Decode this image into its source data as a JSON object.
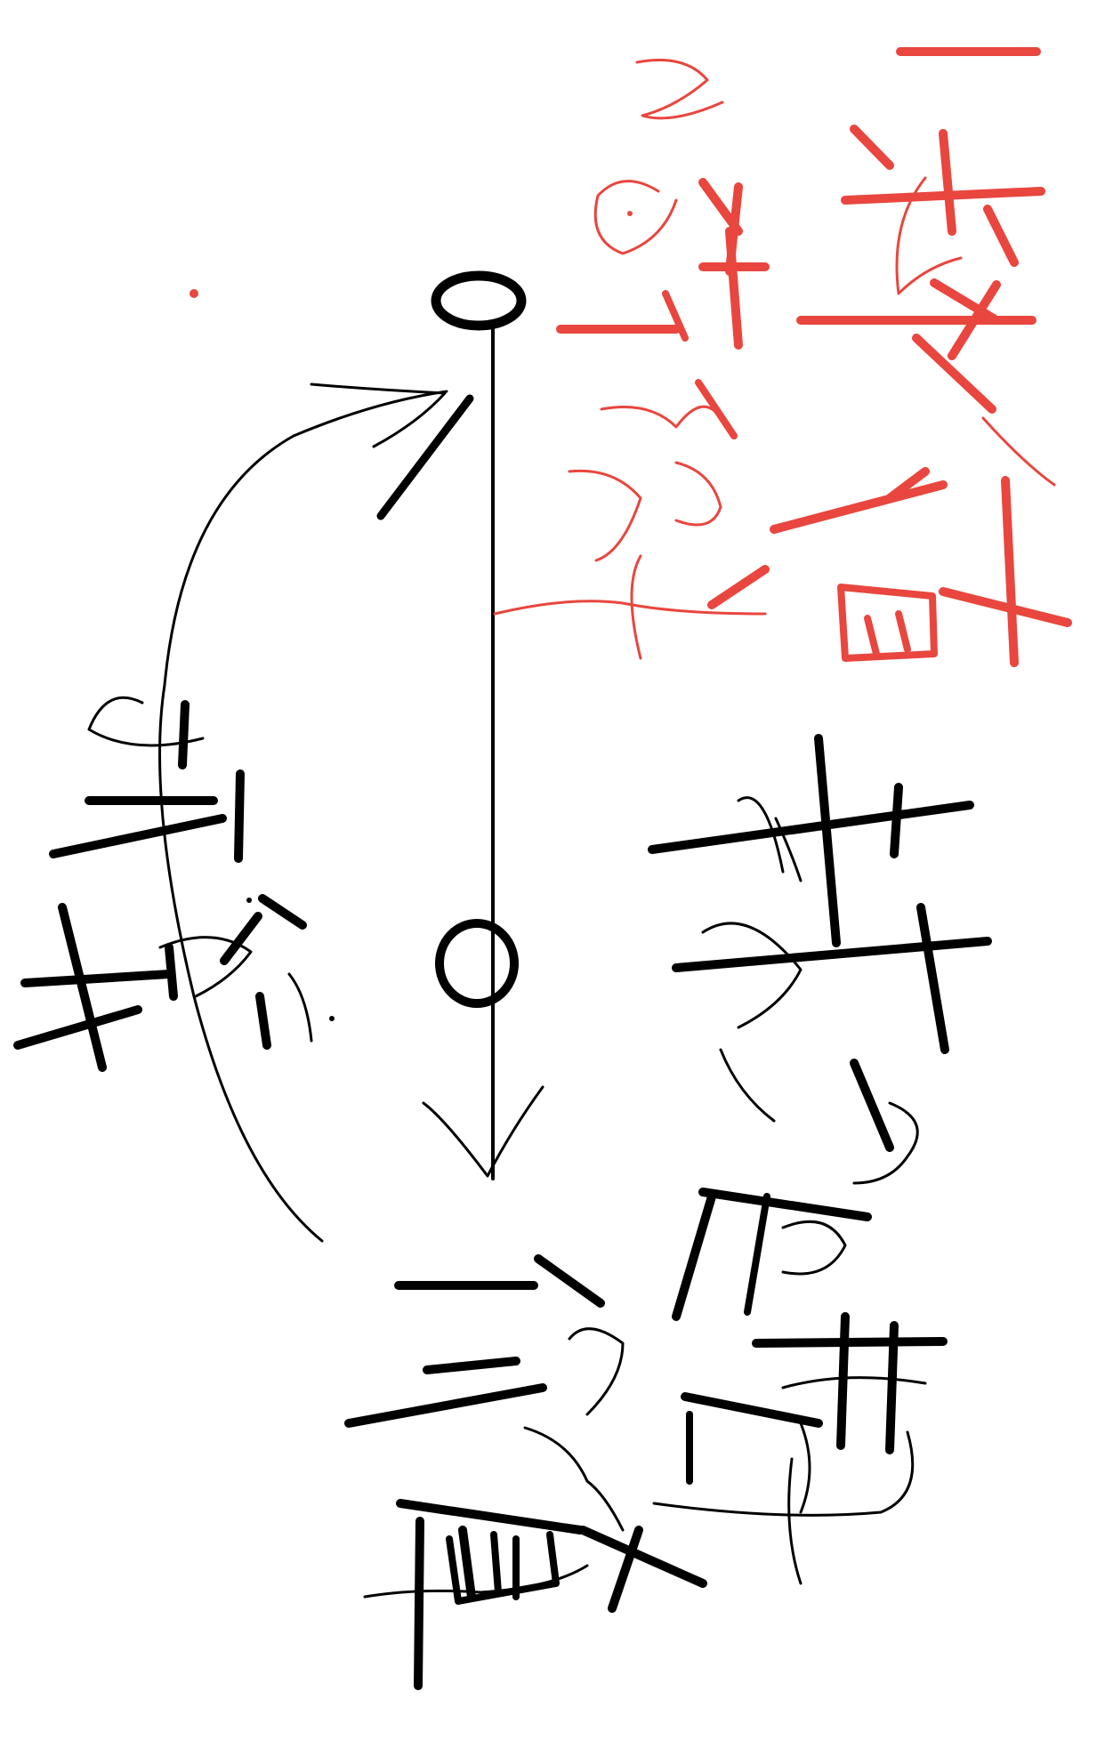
{
  "colors": {
    "ink_black": "#000000",
    "ink_red": "#e8463e",
    "background": "#ffffff"
  },
  "annotations": {
    "red_right_column": "",
    "red_second_column": "",
    "black_left_label": "",
    "black_right_label": "",
    "black_bottom_label": ""
  }
}
